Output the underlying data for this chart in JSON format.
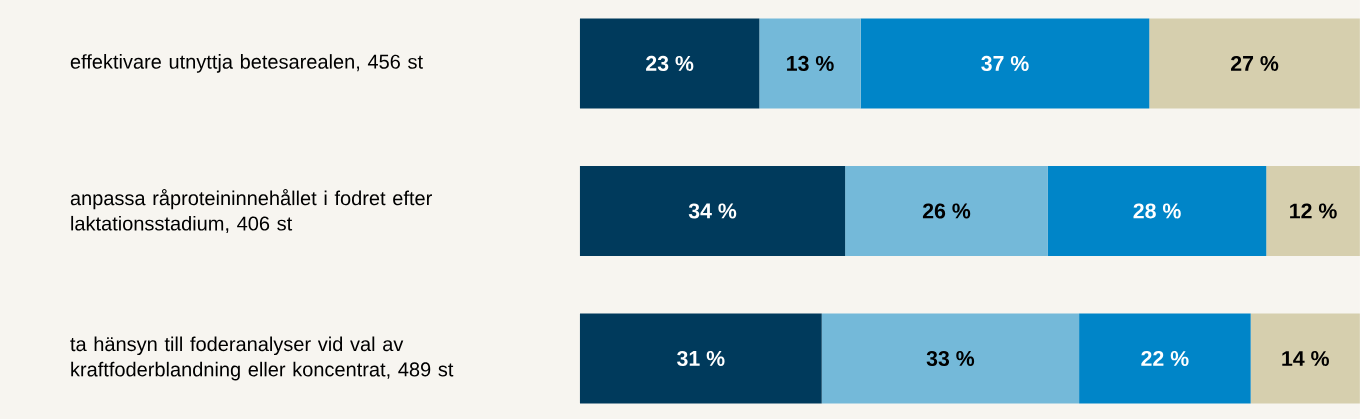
{
  "chart_data": {
    "type": "bar",
    "orientation": "horizontal",
    "stacked": true,
    "tick_labels": "y",
    "categories": [
      "effektivare utnyttja betesarealen, 456 st",
      "anpassa råproteininnehållet i fodret efter laktationsstadium, 406 st",
      "ta hänsyn till foderanalyser vid val av kraftfoderblandning eller koncentrat, 489 st"
    ],
    "series": [
      {
        "color": "#003a5c",
        "values": [
          23,
          34,
          31
        ],
        "value_labels": [
          "23 %",
          "34 %",
          "31 %"
        ]
      },
      {
        "color": "#74b9d9",
        "values": [
          13,
          26,
          33
        ],
        "value_labels": [
          "13 %",
          "26 %",
          "33 %"
        ]
      },
      {
        "color": "#0085c8",
        "values": [
          37,
          28,
          22
        ],
        "value_labels": [
          "37 %",
          "28 %",
          "22 %"
        ]
      },
      {
        "color": "#d6cfae",
        "values": [
          27,
          12,
          14
        ],
        "value_labels": [
          "27 %",
          "12 %",
          "14 %"
        ]
      }
    ]
  }
}
